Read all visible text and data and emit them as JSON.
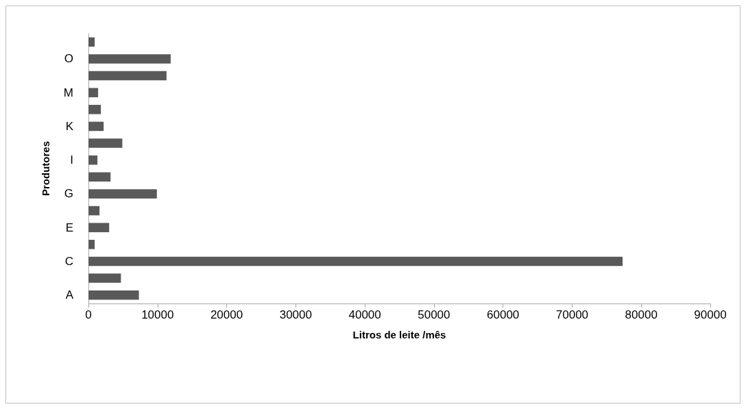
{
  "chart_data": {
    "type": "bar",
    "orientation": "horizontal",
    "xlabel": "Litros de leite /mês",
    "ylabel": "Produtores",
    "categories": [
      null,
      "O",
      null,
      "M",
      null,
      "K",
      null,
      "I",
      null,
      "G",
      null,
      "E",
      null,
      "C",
      null,
      "A"
    ],
    "values": [
      900,
      11900,
      11300,
      1400,
      1800,
      2200,
      4900,
      1300,
      3200,
      9900,
      1600,
      3000,
      900,
      77300,
      4700,
      7300
    ],
    "color": "#595959",
    "xlim": [
      0,
      90000
    ],
    "xticks": [
      0,
      10000,
      20000,
      30000,
      40000,
      50000,
      60000,
      70000,
      80000,
      90000
    ],
    "grid": false
  }
}
